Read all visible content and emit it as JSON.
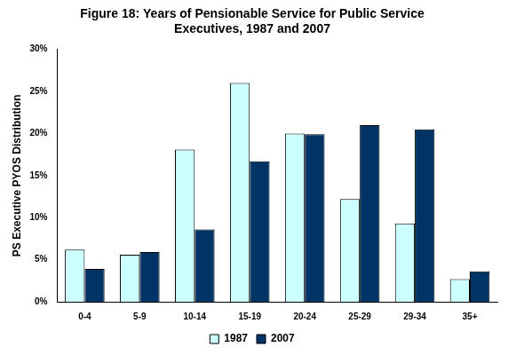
{
  "chart_data": {
    "type": "bar",
    "title": [
      "Figure 18: Years of Pensionable Service for Public Service",
      "Executives, 1987 and 2007"
    ],
    "y_label": "PS Executive PYOS Distribution",
    "categories": [
      "0-4",
      "5-9",
      "10-14",
      "15-19",
      "20-24",
      "25-29",
      "29-34",
      "35+"
    ],
    "series": [
      {
        "name": "1987",
        "color": "#ccffff",
        "values": [
          6.2,
          5.6,
          18.1,
          26.0,
          20.0,
          12.2,
          9.3,
          2.7
        ]
      },
      {
        "name": "2007",
        "color": "#003366",
        "values": [
          3.9,
          5.9,
          8.6,
          16.7,
          19.9,
          21.0,
          20.5,
          3.6
        ]
      }
    ],
    "ylim": [
      0,
      30
    ],
    "yticks": [
      {
        "value": 0,
        "label": "0%"
      },
      {
        "value": 5,
        "label": "5%"
      },
      {
        "value": 10,
        "label": "10%"
      },
      {
        "value": 15,
        "label": "15%"
      },
      {
        "value": 20,
        "label": "20%"
      },
      {
        "value": 25,
        "label": "25%"
      },
      {
        "value": 30,
        "label": "30%"
      }
    ],
    "grid": false,
    "legend": "bottom"
  }
}
